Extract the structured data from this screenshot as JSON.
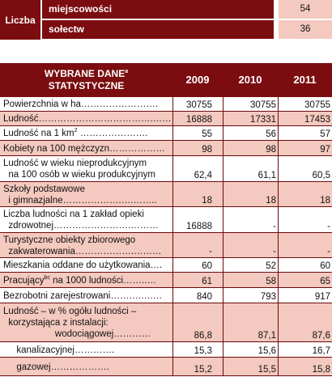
{
  "top": {
    "liczba": "Liczba",
    "rows": [
      {
        "label": "miejscowości",
        "value": "54"
      },
      {
        "label": "sołectw",
        "value": "36"
      }
    ]
  },
  "header": {
    "title_line1": "WYBRANE DANE",
    "title_sup": "a",
    "title_line2": "STATYSTYCZNE",
    "years": [
      "2009",
      "2010",
      "2011"
    ]
  },
  "rows": [
    {
      "l1": "Powierzchnia w ha…………………….",
      "v": [
        "30755",
        "30755",
        "30755"
      ]
    },
    {
      "l1": "Ludność……………………………….……",
      "v": [
        "16888",
        "17331",
        "17453"
      ]
    },
    {
      "l1": "Ludność na 1 km",
      "sup": "2",
      "tail": " ………………….",
      "v": [
        "55",
        "56",
        "57"
      ]
    },
    {
      "l1": "Kobiety na 100 mężczyzn………………",
      "v": [
        "98",
        "98",
        "97"
      ]
    },
    {
      "l1": "Ludność w wieku nieprodukcyjnym",
      "l2": "  na 100 osób w wieku produkcyjnym",
      "v": [
        "62,4",
        "61,1",
        "60,5"
      ]
    },
    {
      "l1": "Szkoły podstawowe",
      "l2": "  i gimnazjalne……………….….……..",
      "v": [
        "18",
        "18",
        "18"
      ]
    },
    {
      "l1": "Liczba ludności na 1 zakład opieki",
      "l2": "  zdrowotnej…………………….………",
      "v": [
        "16888",
        "-",
        "-"
      ]
    },
    {
      "l1": "Turystyczne obiekty zbiorowego",
      "l2": "  zakwaterowania……………….………",
      "v": [
        "-",
        "-",
        "-"
      ]
    },
    {
      "l1": "Mieszkania oddane do użytkowania….",
      "v": [
        "60",
        "52",
        "60"
      ]
    },
    {
      "l1": "Pracujący",
      "sup": "bc",
      "tail": " na 1000 ludności……..…",
      "v": [
        "61",
        "58",
        "65"
      ]
    },
    {
      "l1": "Bezrobotni zarejestrowani……….….…",
      "v": [
        "840",
        "793",
        "917"
      ]
    },
    {
      "l1": "Ludność – w % ogółu ludności –",
      "l2": "  korzystająca z instalacji:",
      "l3": "                    wodociągowej…………",
      "v": [
        "86,8",
        "87,1",
        "87,6"
      ]
    },
    {
      "l1": "  kanalizacyjnej………….",
      "v": [
        "15,3",
        "15,6",
        "16,7"
      ],
      "indent": true
    },
    {
      "l1": "  gazowej……………….",
      "v": [
        "15,2",
        "15,5",
        "15,8"
      ],
      "indent": true
    }
  ]
}
